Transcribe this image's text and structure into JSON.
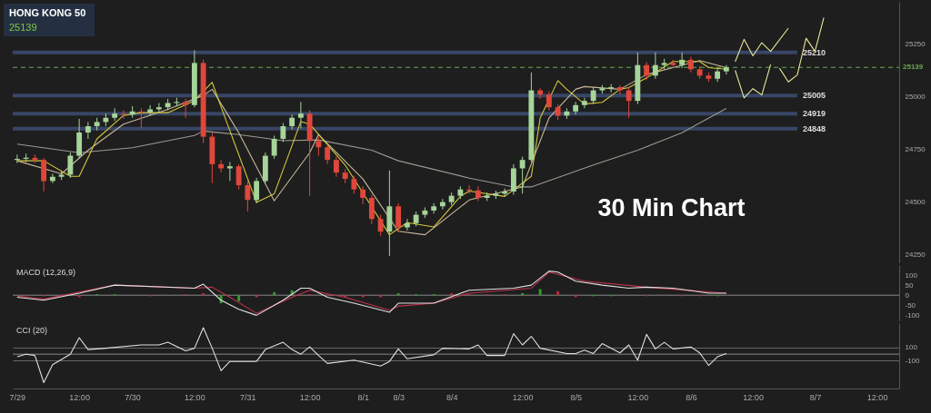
{
  "chart_data": [
    {
      "type": "candlestick",
      "title": "HONG KONG 50",
      "subtitle": "25139",
      "categories": [
        null,
        null,
        null,
        null,
        null,
        null,
        null,
        null,
        null,
        null,
        null,
        null,
        null,
        null,
        null,
        null,
        null,
        null,
        null,
        null,
        null,
        null,
        null,
        null,
        null,
        null,
        null,
        null,
        null,
        null,
        null,
        null,
        null,
        null,
        null,
        null,
        null,
        null,
        null,
        null,
        null,
        null,
        null,
        null,
        null,
        null,
        null,
        null,
        null,
        null,
        null,
        null,
        null,
        null,
        null,
        null,
        null,
        null,
        null,
        null,
        null,
        null,
        null,
        null,
        null,
        null,
        null,
        null,
        null,
        null,
        null,
        null,
        null,
        null,
        null,
        null,
        null,
        null,
        null,
        null,
        null,
        null,
        null,
        null,
        null,
        null,
        null,
        null,
        null,
        null,
        null,
        null,
        null,
        null,
        null,
        null,
        null,
        null,
        null,
        null
      ],
      "ohlc": [
        [
          24700,
          24725,
          24685,
          24705
        ],
        [
          24705,
          24730,
          24690,
          24710
        ],
        [
          24710,
          24725,
          24685,
          24700
        ],
        [
          24700,
          24710,
          24550,
          24600
        ],
        [
          24600,
          24635,
          24590,
          24620
        ],
        [
          24620,
          24650,
          24605,
          24630
        ],
        [
          24630,
          24735,
          24615,
          24720
        ],
        [
          24720,
          24895,
          24705,
          24830
        ],
        [
          24830,
          24880,
          24800,
          24860
        ],
        [
          24860,
          24900,
          24840,
          24880
        ],
        [
          24880,
          24920,
          24860,
          24900
        ],
        [
          24900,
          24945,
          24885,
          24920
        ],
        [
          24920,
          24935,
          24895,
          24915
        ],
        [
          24915,
          24955,
          24900,
          24930
        ],
        [
          24930,
          24945,
          24850,
          24925
        ],
        [
          24925,
          24960,
          24910,
          24940
        ],
        [
          24940,
          24970,
          24925,
          24950
        ],
        [
          24950,
          24990,
          24935,
          24970
        ],
        [
          24970,
          24995,
          24955,
          24975
        ],
        [
          24975,
          24990,
          24900,
          24960
        ],
        [
          24960,
          25220,
          24950,
          25160
        ],
        [
          25160,
          25175,
          24780,
          24810
        ],
        [
          24810,
          24830,
          24590,
          24680
        ],
        [
          24680,
          24700,
          24640,
          24660
        ],
        [
          24660,
          24690,
          24600,
          24670
        ],
        [
          24670,
          24680,
          24560,
          24580
        ],
        [
          24580,
          24600,
          24455,
          24510
        ],
        [
          24510,
          24615,
          24495,
          24600
        ],
        [
          24600,
          24735,
          24590,
          24720
        ],
        [
          24720,
          24815,
          24705,
          24800
        ],
        [
          24800,
          24875,
          24785,
          24860
        ],
        [
          24860,
          24915,
          24845,
          24900
        ],
        [
          24900,
          24975,
          24850,
          24920
        ],
        [
          24920,
          24935,
          24530,
          24790
        ],
        [
          24790,
          24810,
          24720,
          24760
        ],
        [
          24760,
          24775,
          24680,
          24700
        ],
        [
          24700,
          24715,
          24620,
          24640
        ],
        [
          24640,
          24655,
          24590,
          24610
        ],
        [
          24610,
          24625,
          24540,
          24560
        ],
        [
          24560,
          24575,
          24490,
          24520
        ],
        [
          24520,
          24535,
          24395,
          24420
        ],
        [
          24420,
          24440,
          24340,
          24360
        ],
        [
          24360,
          24650,
          24245,
          24480
        ],
        [
          24480,
          24495,
          24360,
          24380
        ],
        [
          24380,
          24420,
          24365,
          24400
        ],
        [
          24400,
          24455,
          24385,
          24440
        ],
        [
          24440,
          24475,
          24425,
          24460
        ],
        [
          24460,
          24495,
          24445,
          24480
        ],
        [
          24480,
          24515,
          24465,
          24500
        ],
        [
          24500,
          24545,
          24485,
          24530
        ],
        [
          24530,
          24575,
          24515,
          24560
        ],
        [
          24560,
          24580,
          24540,
          24555
        ],
        [
          24555,
          24575,
          24505,
          24520
        ],
        [
          24520,
          24545,
          24505,
          24530
        ],
        [
          24530,
          24555,
          24515,
          24540
        ],
        [
          24540,
          24565,
          24525,
          24550
        ],
        [
          24550,
          24680,
          24535,
          24660
        ],
        [
          24660,
          24715,
          24540,
          24700
        ],
        [
          24700,
          25115,
          24690,
          25030
        ],
        [
          25030,
          25040,
          24990,
          25010
        ],
        [
          25010,
          25025,
          24935,
          24950
        ],
        [
          24950,
          24965,
          24890,
          24910
        ],
        [
          24910,
          24945,
          24895,
          24930
        ],
        [
          24930,
          24975,
          24915,
          24960
        ],
        [
          24960,
          24995,
          24945,
          24980
        ],
        [
          24980,
          25045,
          24965,
          25030
        ],
        [
          25030,
          25055,
          25015,
          25040
        ],
        [
          25040,
          25060,
          25020,
          25045
        ],
        [
          25045,
          25055,
          25010,
          25030
        ],
        [
          25030,
          25045,
          24900,
          24980
        ],
        [
          24980,
          25210,
          24965,
          25150
        ],
        [
          25150,
          25165,
          25080,
          25100
        ],
        [
          25100,
          25210,
          25085,
          25150
        ],
        [
          25150,
          25180,
          25130,
          25160
        ],
        [
          25160,
          25175,
          25135,
          25150
        ],
        [
          25150,
          25210,
          25135,
          25175
        ],
        [
          25175,
          25190,
          25115,
          25130
        ],
        [
          25130,
          25145,
          25085,
          25100
        ],
        [
          25100,
          25115,
          25070,
          25085
        ],
        [
          25085,
          25135,
          25070,
          25120
        ],
        [
          25120,
          25150,
          25105,
          25139
        ],
        null,
        null,
        null,
        null,
        null,
        null,
        null,
        null,
        null,
        null,
        null,
        null,
        null,
        null,
        null,
        null,
        null,
        null,
        null
      ],
      "colors": [
        "#a6d49a",
        "#a6d49a",
        "#e0473b",
        "#e0473b",
        "#a6d49a",
        "#a6d49a",
        "#a6d49a",
        "#a6d49a",
        "#a6d49a",
        "#a6d49a",
        "#a6d49a",
        "#a6d49a",
        "#e0473b",
        "#a6d49a",
        "#e0473b",
        "#a6d49a",
        "#a6d49a",
        "#a6d49a",
        "#a6d49a",
        "#e0473b",
        "#a6d49a",
        "#e0473b",
        "#e0473b",
        "#e0473b",
        "#a6d49a",
        "#e0473b",
        "#e0473b",
        "#a6d49a",
        "#a6d49a",
        "#a6d49a",
        "#a6d49a",
        "#a6d49a",
        "#a6d49a",
        "#e0473b",
        "#e0473b",
        "#e0473b",
        "#e0473b",
        "#e0473b",
        "#e0473b",
        "#e0473b",
        "#e0473b",
        "#e0473b",
        "#a6d49a",
        "#e0473b",
        "#a6d49a",
        "#a6d49a",
        "#a6d49a",
        "#a6d49a",
        "#a6d49a",
        "#a6d49a",
        "#a6d49a",
        "#e0473b",
        "#e0473b",
        "#a6d49a",
        "#a6d49a",
        "#a6d49a",
        "#a6d49a",
        "#a6d49a",
        "#a6d49a",
        "#e0473b",
        "#e0473b",
        "#e0473b",
        "#a6d49a",
        "#a6d49a",
        "#a6d49a",
        "#a6d49a",
        "#a6d49a",
        "#a6d49a",
        "#e0473b",
        "#e0473b",
        "#a6d49a",
        "#e0473b",
        "#a6d49a",
        "#a6d49a",
        "#e0473b",
        "#a6d49a",
        "#e0473b",
        "#e0473b",
        "#e0473b",
        "#a6d49a",
        "#a6d49a",
        null,
        null,
        null,
        null,
        null,
        null,
        null,
        null,
        null,
        null,
        null,
        null,
        null,
        null,
        null,
        null,
        null,
        null,
        null
      ],
      "ylim": [
        24210,
        25450
      ],
      "yticks": [
        24250,
        24500,
        24750,
        25000,
        25250
      ],
      "series": [
        {
          "type": "line",
          "color": "#9a9a90",
          "values": [
            24775,
            null,
            null,
            null,
            null,
            null,
            null,
            24734,
            null,
            null,
            null,
            null,
            null,
            24758,
            null,
            null,
            null,
            null,
            null,
            null,
            24816,
            24837,
            null,
            null,
            null,
            24820,
            null,
            null,
            null,
            null,
            24791,
            null,
            null,
            null,
            24795,
            null,
            null,
            null,
            null,
            null,
            24746,
            null,
            null,
            24696,
            null,
            null,
            null,
            null,
            null,
            null,
            null,
            24614,
            null,
            null,
            null,
            null,
            24572,
            null,
            24572,
            null,
            null,
            null,
            null,
            null,
            null,
            24676,
            null,
            null,
            null,
            null,
            24746,
            null,
            null,
            null,
            null,
            24829,
            null,
            null,
            null,
            null,
            24944,
            null,
            null,
            null,
            null,
            null,
            null,
            null,
            null,
            null,
            null,
            null,
            null,
            null,
            null,
            null,
            null,
            null,
            null,
            null
          ]
        },
        {
          "type": "line",
          "color": "#c8b89a",
          "values": [
            24696,
            null,
            null,
            null,
            null,
            24634,
            null,
            null,
            24746,
            null,
            null,
            null,
            24870,
            null,
            null,
            null,
            null,
            24940,
            null,
            null,
            null,
            25006,
            25035,
            null,
            null,
            24829,
            null,
            null,
            null,
            24506,
            null,
            null,
            null,
            24734,
            24820,
            null,
            null,
            null,
            null,
            24610,
            null,
            null,
            null,
            24362,
            null,
            null,
            24345,
            null,
            null,
            null,
            null,
            24510,
            null,
            null,
            null,
            null,
            null,
            24572,
            null,
            null,
            24899,
            null,
            null,
            25035,
            25048,
            null,
            null,
            null,
            25035,
            null,
            null,
            25105,
            null,
            null,
            null,
            null,
            null,
            25171,
            null,
            null,
            25138,
            null,
            null,
            null,
            null,
            null,
            null,
            null,
            null,
            null,
            null,
            null,
            null,
            null,
            null,
            null,
            null,
            null,
            null,
            null
          ]
        },
        {
          "type": "line",
          "color": "#d4c83a",
          "values": [
            24696,
            null,
            null,
            24696,
            null,
            null,
            24622,
            24622,
            null,
            24800,
            null,
            null,
            24911,
            null,
            24924,
            null,
            null,
            24924,
            null,
            null,
            24981,
            null,
            25068,
            24952,
            null,
            null,
            null,
            24498,
            null,
            24539,
            null,
            null,
            24882,
            24870,
            null,
            null,
            null,
            24676,
            null,
            null,
            null,
            null,
            24345,
            null,
            24403,
            null,
            null,
            24382,
            null,
            null,
            24527,
            24552,
            null,
            null,
            null,
            24527,
            null,
            null,
            24622,
            24899,
            null,
            25076,
            25035,
            null,
            24965,
            null,
            24973,
            null,
            25035,
            25043,
            null,
            25089,
            null,
            null,
            25167,
            null,
            null,
            25167,
            25138,
            null,
            25130,
            null,
            null,
            null,
            null,
            null,
            null,
            null,
            null,
            null,
            null,
            null,
            null,
            null,
            null,
            null,
            null,
            null,
            null,
            null
          ]
        },
        {
          "type": "line",
          "color": "#e8e89a",
          "values": [
            null,
            null,
            null,
            null,
            null,
            null,
            null,
            null,
            null,
            null,
            null,
            null,
            null,
            null,
            null,
            null,
            null,
            null,
            null,
            null,
            null,
            null,
            null,
            null,
            null,
            null,
            null,
            null,
            null,
            null,
            null,
            null,
            null,
            null,
            null,
            null,
            null,
            null,
            null,
            null,
            null,
            null,
            null,
            null,
            null,
            null,
            null,
            null,
            null,
            null,
            null,
            null,
            null,
            null,
            null,
            null,
            null,
            null,
            null,
            null,
            null,
            null,
            null,
            null,
            null,
            null,
            null,
            null,
            null,
            null,
            null,
            null,
            null,
            null,
            null,
            null,
            null,
            null,
            null,
            null,
            null,
            25166,
            25272,
            25194,
            25256,
            25215,
            null,
            25325,
            null,
            null,
            null,
            null,
            null,
            null,
            null,
            null,
            null,
            null,
            null,
            null
          ]
        },
        {
          "type": "line",
          "color": "#e8e89a",
          "values": [
            null,
            null,
            null,
            null,
            null,
            null,
            null,
            null,
            null,
            null,
            null,
            null,
            null,
            null,
            null,
            null,
            null,
            null,
            null,
            null,
            null,
            null,
            null,
            null,
            null,
            null,
            null,
            null,
            null,
            null,
            null,
            null,
            null,
            null,
            null,
            null,
            null,
            null,
            null,
            null,
            null,
            null,
            null,
            null,
            null,
            null,
            null,
            null,
            null,
            null,
            null,
            null,
            null,
            null,
            null,
            null,
            null,
            null,
            null,
            null,
            null,
            null,
            null,
            null,
            null,
            null,
            null,
            null,
            null,
            null,
            null,
            null,
            null,
            null,
            null,
            null,
            null,
            null,
            null,
            null,
            null,
            25125,
            24994,
            25038,
            25008,
            25152,
            null,
            null,
            null,
            null,
            null,
            null,
            null,
            null,
            null,
            null,
            null,
            null,
            null,
            null
          ]
        },
        {
          "type": "line",
          "color": "#e8e89a",
          "values": [
            null,
            null,
            null,
            null,
            null,
            null,
            null,
            null,
            null,
            null,
            null,
            null,
            null,
            null,
            null,
            null,
            null,
            null,
            null,
            null,
            null,
            null,
            null,
            null,
            null,
            null,
            null,
            null,
            null,
            null,
            null,
            null,
            null,
            null,
            null,
            null,
            null,
            null,
            null,
            null,
            null,
            null,
            null,
            null,
            null,
            null,
            null,
            null,
            null,
            null,
            null,
            null,
            null,
            null,
            null,
            null,
            null,
            null,
            null,
            null,
            null,
            null,
            null,
            null,
            null,
            null,
            null,
            null,
            null,
            null,
            null,
            null,
            null,
            null,
            null,
            null,
            null,
            null,
            null,
            null,
            null,
            null,
            null,
            null,
            null,
            null,
            25135,
            25070,
            25103,
            25277,
            25215,
            25375,
            null,
            null,
            null,
            null,
            null,
            null,
            null,
            null
          ]
        }
      ],
      "ref_lines": [
        {
          "axis": "y",
          "value": 25210,
          "label": "25210",
          "color": "#3b4a6e"
        },
        {
          "axis": "y",
          "value": 25005,
          "label": "25005",
          "color": "#3b4a6e"
        },
        {
          "axis": "y",
          "value": 24919,
          "label": "24919",
          "color": "#3b4a6e"
        },
        {
          "axis": "y",
          "value": 24848,
          "label": "24848",
          "color": "#3b4a6e"
        },
        {
          "axis": "y",
          "value": 25139,
          "label": "25139",
          "color": "#6aa84f",
          "line_style": "dashed"
        }
      ],
      "annotations": [
        "30 Min Chart"
      ]
    },
    {
      "type": "line",
      "title": "MACD (12,26,9)",
      "ylim": [
        -130,
        150
      ],
      "yticks": [
        -100,
        -50,
        0,
        50,
        100
      ],
      "categories": [
        null,
        null,
        null,
        null,
        null,
        null,
        null,
        null,
        null,
        null,
        null,
        null,
        null,
        null,
        null,
        null,
        null,
        null,
        null,
        null,
        null,
        null,
        null,
        null,
        null,
        null,
        null,
        null,
        null,
        null,
        null,
        null,
        null,
        null,
        null,
        null,
        null,
        null,
        null,
        null,
        null,
        null,
        null,
        null,
        null,
        null,
        null,
        null,
        null,
        null,
        null,
        null,
        null,
        null,
        null,
        null,
        null,
        null,
        null,
        null,
        null,
        null,
        null,
        null,
        null,
        null,
        null,
        null,
        null,
        null,
        null,
        null,
        null,
        null,
        null,
        null,
        null,
        null,
        null,
        null,
        null,
        null,
        null,
        null,
        null,
        null,
        null,
        null,
        null,
        null,
        null,
        null,
        null,
        null,
        null,
        null,
        null,
        null,
        null,
        null
      ],
      "series": [
        {
          "type": "bar",
          "color": "#2f9e2f",
          "values": [
            null,
            null,
            null,
            null,
            null,
            null,
            null,
            null,
            null,
            5,
            null,
            5,
            null,
            null,
            null,
            null,
            null,
            null,
            null,
            null,
            null,
            null,
            null,
            -40,
            null,
            -30,
            null,
            null,
            null,
            15,
            null,
            25,
            null,
            null,
            null,
            null,
            null,
            null,
            null,
            null,
            null,
            null,
            null,
            10,
            null,
            5,
            null,
            5,
            null,
            null,
            null,
            null,
            null,
            null,
            null,
            null,
            null,
            10,
            null,
            30,
            null,
            null,
            null,
            null,
            null,
            -5,
            null,
            -5,
            null,
            null,
            null,
            null,
            null,
            null,
            null,
            null,
            null,
            null,
            null,
            -5,
            null,
            null,
            null,
            null,
            null,
            null,
            null,
            null,
            null,
            null,
            null,
            null,
            null,
            null,
            null,
            null,
            null,
            null,
            null,
            null
          ]
        },
        {
          "type": "bar",
          "color": "#b3303a",
          "values": [
            null,
            -5,
            null,
            -5,
            null,
            null,
            null,
            -10,
            null,
            null,
            null,
            null,
            null,
            null,
            null,
            -5,
            null,
            null,
            null,
            5,
            null,
            10,
            null,
            null,
            null,
            null,
            null,
            -10,
            null,
            null,
            null,
            null,
            null,
            5,
            null,
            -5,
            null,
            -10,
            null,
            -10,
            null,
            -10,
            null,
            null,
            null,
            null,
            null,
            null,
            null,
            10,
            null,
            5,
            null,
            5,
            null,
            5,
            null,
            null,
            null,
            null,
            null,
            20,
            null,
            -10,
            null,
            null,
            null,
            null,
            null,
            null,
            null,
            -5,
            null,
            null,
            null,
            -5,
            null,
            -5,
            null,
            null,
            null,
            null,
            null,
            null,
            null,
            null,
            null,
            null,
            null,
            null,
            null,
            null,
            null,
            null,
            null,
            null,
            null,
            null,
            null,
            null
          ]
        },
        {
          "type": "line",
          "color": "#c0334a",
          "values": [
            -5,
            null,
            null,
            -20,
            null,
            null,
            null,
            null,
            25,
            null,
            null,
            50,
            null,
            null,
            null,
            null,
            null,
            null,
            null,
            null,
            35,
            null,
            40,
            null,
            -10,
            null,
            null,
            -90,
            null,
            null,
            null,
            -10,
            null,
            25,
            null,
            null,
            null,
            -10,
            null,
            null,
            null,
            null,
            -75,
            -55,
            null,
            null,
            null,
            -40,
            null,
            null,
            null,
            10,
            null,
            null,
            null,
            null,
            null,
            null,
            35,
            null,
            115,
            null,
            null,
            null,
            70,
            null,
            null,
            null,
            null,
            null,
            null,
            40,
            null,
            null,
            null,
            null,
            null,
            null,
            null,
            null,
            10,
            null,
            null,
            null,
            null,
            null,
            null,
            null,
            null,
            null,
            null,
            null,
            null,
            null,
            null,
            null,
            null,
            null,
            null,
            null
          ]
        },
        {
          "type": "line",
          "color": "#e0e0e0",
          "values": [
            -10,
            null,
            null,
            -25,
            null,
            null,
            null,
            10,
            null,
            null,
            null,
            50,
            null,
            null,
            null,
            null,
            null,
            null,
            null,
            null,
            35,
            55,
            null,
            -25,
            null,
            -70,
            null,
            -100,
            null,
            null,
            -25,
            null,
            35,
            35,
            null,
            -10,
            null,
            null,
            -40,
            null,
            null,
            null,
            -85,
            -40,
            null,
            null,
            null,
            -40,
            null,
            null,
            null,
            25,
            null,
            null,
            null,
            null,
            35,
            null,
            50,
            null,
            120,
            115,
            null,
            70,
            null,
            null,
            50,
            null,
            null,
            35,
            null,
            40,
            null,
            null,
            35,
            null,
            null,
            null,
            10,
            null,
            10,
            null,
            null,
            null,
            null,
            null,
            null,
            null,
            null,
            null,
            null,
            null,
            null,
            null,
            null,
            null,
            null,
            null,
            null,
            null
          ]
        }
      ],
      "ref_lines": [
        {
          "axis": "y",
          "value": 0,
          "color": "#888888"
        }
      ]
    },
    {
      "type": "line",
      "title": "CCI (20)",
      "ylim": [
        -520,
        470
      ],
      "yticks": [
        -100,
        100
      ],
      "grid": "y",
      "categories": [
        "7/29",
        null,
        null,
        null,
        null,
        null,
        null,
        "12:00",
        null,
        null,
        null,
        null,
        null,
        "7/30",
        null,
        null,
        null,
        null,
        null,
        null,
        "12:00",
        null,
        null,
        null,
        null,
        null,
        "7/31",
        null,
        null,
        null,
        null,
        null,
        null,
        "12:00",
        null,
        null,
        null,
        null,
        null,
        "8/1",
        null,
        null,
        null,
        "8/3",
        null,
        null,
        null,
        null,
        null,
        "8/4",
        null,
        null,
        null,
        null,
        null,
        null,
        null,
        "12:00",
        null,
        null,
        null,
        null,
        null,
        "8/5",
        null,
        null,
        null,
        null,
        null,
        null,
        "12:00",
        null,
        null,
        null,
        null,
        null,
        "8/6",
        null,
        null,
        null,
        null,
        null,
        null,
        "12:00",
        null,
        null,
        null,
        null,
        null,
        null,
        "8/7",
        null,
        null,
        null,
        null,
        null,
        null,
        "12:00",
        null,
        null
      ],
      "series": [
        {
          "type": "line",
          "color": "#e0e0e0",
          "values": [
            -40,
            0,
            -20,
            -430,
            -160,
            null,
            0,
            250,
            70,
            null,
            90,
            null,
            null,
            null,
            140,
            null,
            140,
            180,
            null,
            50,
            90,
            400,
            90,
            -250,
            -110,
            null,
            null,
            -110,
            70,
            null,
            180,
            70,
            0,
            110,
            -20,
            -140,
            null,
            null,
            -90,
            null,
            null,
            -180,
            -110,
            80,
            -70,
            null,
            null,
            -10,
            90,
            null,
            null,
            80,
            140,
            -20,
            null,
            -20,
            310,
            140,
            270,
            90,
            null,
            null,
            10,
            10,
            60,
            10,
            160,
            null,
            20,
            140,
            -90,
            300,
            80,
            180,
            80,
            null,
            110,
            20,
            -170,
            -40,
            10,
            null,
            null,
            null,
            null,
            null,
            null,
            null,
            null,
            null,
            null,
            null,
            null,
            null,
            null,
            null,
            null,
            null,
            null,
            null
          ]
        }
      ],
      "ref_lines": [
        {
          "axis": "y",
          "value": 0,
          "color": "#888888"
        }
      ]
    }
  ]
}
